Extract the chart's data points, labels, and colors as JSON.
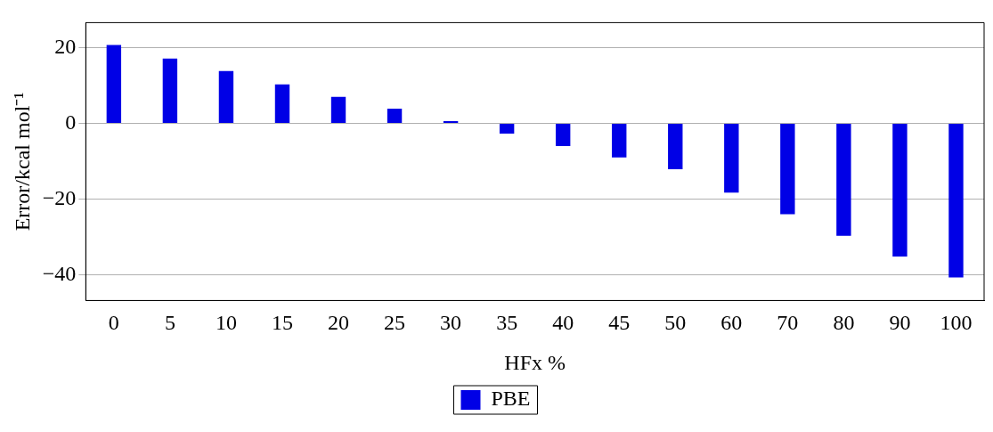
{
  "chart_data": {
    "type": "bar",
    "xlabel": "HFx %",
    "ylabel": "Error/kcal mol⁻¹",
    "categories": [
      "0",
      "5",
      "10",
      "15",
      "20",
      "25",
      "30",
      "35",
      "40",
      "45",
      "50",
      "60",
      "70",
      "80",
      "90",
      "100"
    ],
    "series": [
      {
        "name": "PBE",
        "color": "#0000e6",
        "values": [
          20.7,
          17.1,
          13.8,
          10.3,
          7.0,
          3.9,
          0.6,
          -2.7,
          -6.0,
          -9.0,
          -12.1,
          -18.3,
          -24.0,
          -29.7,
          -35.2,
          -40.7
        ]
      }
    ],
    "ylim": [
      -46.8,
      26.6
    ],
    "yticks": [
      -40,
      -20,
      0,
      20
    ],
    "grid": "y",
    "legend": "bottom"
  }
}
